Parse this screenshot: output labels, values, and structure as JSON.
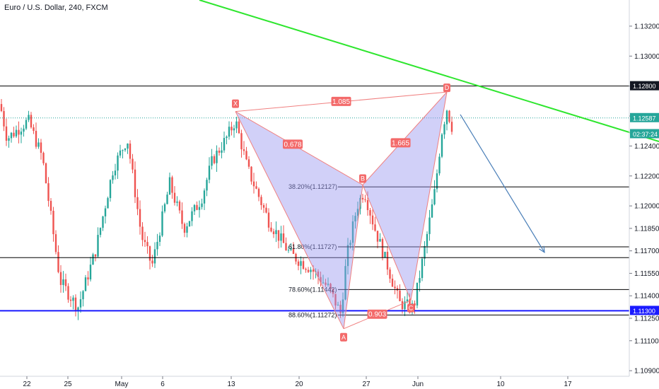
{
  "title": "Euro / U.S. Dollar, 240, FXCM",
  "colors": {
    "up": "#26a69a",
    "down": "#ef5350",
    "pattern_fill": "#9896f0",
    "pattern_line": "#f08080",
    "trendline": "#2ee62e",
    "arrow": "#4a7fb8",
    "support": "#1a1aff",
    "price_line": "#26a69a"
  },
  "chart_data": {
    "type": "candlestick",
    "symbol": "EUR/USD",
    "timeframe": "240",
    "source": "FXCM",
    "y_ticks": [
      "1.13200",
      "1.13000",
      "1.12800",
      "1.12600",
      "1.12400",
      "1.12200",
      "1.12000",
      "1.11850",
      "1.11700",
      "1.11550",
      "1.11400",
      "1.11250",
      "1.11100",
      "1.10900"
    ],
    "x_ticks": [
      "22",
      "25",
      "May",
      "6",
      "13",
      "20",
      "27",
      "Jun",
      "10",
      "17"
    ],
    "ylim": [
      1.1087,
      1.1338
    ],
    "price_badges": [
      {
        "label": "1.12800",
        "value": 1.128,
        "style": "dark"
      },
      {
        "label": "1.12587",
        "value": 1.12587,
        "style": "teal"
      },
      {
        "label": "02:37:24",
        "value": 1.1248,
        "style": "teal"
      },
      {
        "label": "1.11300",
        "value": 1.113,
        "style": "blue"
      }
    ],
    "horizontal_levels": [
      {
        "value": 1.128,
        "color": "#000000"
      },
      {
        "value": 1.11655,
        "color": "#000000"
      },
      {
        "value": 1.113,
        "color": "#1a1aff"
      }
    ],
    "fib_levels": [
      {
        "label": "38.20%(1.12127)",
        "value": 1.12127
      },
      {
        "label": "61.80%(1.11727)",
        "value": 1.11727
      },
      {
        "label": "78.60%(1.11442)",
        "value": 1.11442
      },
      {
        "label": "88.60%(1.11272)",
        "value": 1.11272
      }
    ],
    "pattern_points": [
      {
        "label": "X",
        "value": 1.1263
      },
      {
        "label": "A",
        "value": 1.1118
      },
      {
        "label": "B",
        "value": 1.1214
      },
      {
        "label": "C",
        "value": 1.1137
      },
      {
        "label": "D",
        "value": 1.1276
      }
    ],
    "ratios": [
      "0.678",
      "1.085",
      "1.665",
      "0.903"
    ]
  }
}
